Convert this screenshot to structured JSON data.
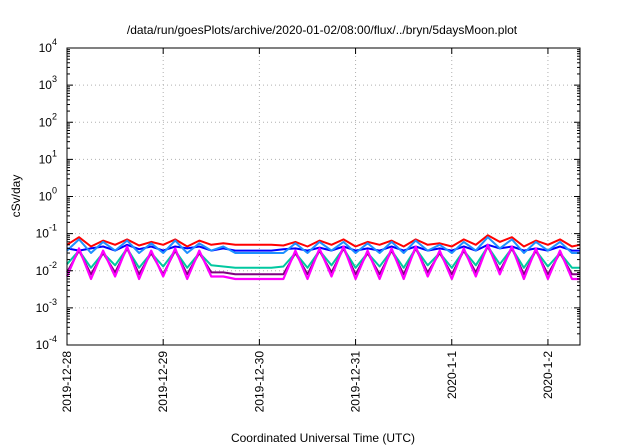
{
  "chart_data": {
    "type": "line",
    "title": "/data/run/goesPlots/archive/2020-01-02/08:00/flux/../bryn/5daysMoon.plot",
    "xlabel": "Coordinated Universal Time (UTC)",
    "ylabel": "cSv/day",
    "y_scale": "log",
    "ylim": [
      0.0001,
      10000
    ],
    "y_ticks": [
      {
        "value": 0.0001,
        "base": "10",
        "exp": "-4"
      },
      {
        "value": 0.001,
        "base": "10",
        "exp": "-3"
      },
      {
        "value": 0.01,
        "base": "10",
        "exp": "-2"
      },
      {
        "value": 0.1,
        "base": "10",
        "exp": "-1"
      },
      {
        "value": 1,
        "base": "10",
        "exp": "0"
      },
      {
        "value": 10,
        "base": "10",
        "exp": "1"
      },
      {
        "value": 100,
        "base": "10",
        "exp": "2"
      },
      {
        "value": 1000,
        "base": "10",
        "exp": "3"
      },
      {
        "value": 10000,
        "base": "10",
        "exp": "4"
      }
    ],
    "xlim": [
      "2019-12-28T00:00",
      "2020-01-02T08:00"
    ],
    "x_ticks": [
      {
        "date": "2019-12-28T00:00",
        "label": "2019-12-28"
      },
      {
        "date": "2019-12-29T00:00",
        "label": "2019-12-29"
      },
      {
        "date": "2019-12-30T00:00",
        "label": "2019-12-30"
      },
      {
        "date": "2019-12-31T00:00",
        "label": "2019-12-31"
      },
      {
        "date": "2020-01-01T00:00",
        "label": "2020-1-1"
      },
      {
        "date": "2020-01-02T00:00",
        "label": "2020-1-2"
      }
    ],
    "grid": true,
    "legend": "none",
    "x": [
      "2019-12-28T00:00",
      "2019-12-28T03:00",
      "2019-12-28T06:00",
      "2019-12-28T09:00",
      "2019-12-28T12:00",
      "2019-12-28T15:00",
      "2019-12-28T18:00",
      "2019-12-28T21:00",
      "2019-12-29T00:00",
      "2019-12-29T03:00",
      "2019-12-29T06:00",
      "2019-12-29T09:00",
      "2019-12-29T12:00",
      "2019-12-29T15:00",
      "2019-12-29T18:00",
      "2019-12-29T21:00",
      "2019-12-30T00:00",
      "2019-12-30T03:00",
      "2019-12-30T06:00",
      "2019-12-30T09:00",
      "2019-12-30T12:00",
      "2019-12-30T15:00",
      "2019-12-30T18:00",
      "2019-12-30T21:00",
      "2019-12-31T00:00",
      "2019-12-31T03:00",
      "2019-12-31T06:00",
      "2019-12-31T09:00",
      "2019-12-31T12:00",
      "2019-12-31T15:00",
      "2019-12-31T18:00",
      "2019-12-31T21:00",
      "2020-01-01T00:00",
      "2020-01-01T03:00",
      "2020-01-01T06:00",
      "2020-01-01T09:00",
      "2020-01-01T12:00",
      "2020-01-01T15:00",
      "2020-01-01T18:00",
      "2020-01-01T21:00",
      "2020-01-02T00:00",
      "2020-01-02T03:00",
      "2020-01-02T06:00",
      "2020-01-02T08:00"
    ],
    "series": [
      {
        "color": "#ff0000",
        "values": [
          0.05,
          0.08,
          0.045,
          0.065,
          0.05,
          0.07,
          0.048,
          0.06,
          0.05,
          0.07,
          0.045,
          0.065,
          0.05,
          0.055,
          0.05,
          0.05,
          0.05,
          0.05,
          0.048,
          0.06,
          0.045,
          0.065,
          0.05,
          0.07,
          0.045,
          0.06,
          0.05,
          0.065,
          0.045,
          0.07,
          0.05,
          0.055,
          0.045,
          0.07,
          0.05,
          0.09,
          0.06,
          0.08,
          0.045,
          0.065,
          0.05,
          0.07,
          0.045,
          0.05
        ]
      },
      {
        "color": "#0000ff",
        "values": [
          0.04,
          0.035,
          0.04,
          0.045,
          0.035,
          0.05,
          0.038,
          0.045,
          0.035,
          0.045,
          0.04,
          0.045,
          0.035,
          0.04,
          0.035,
          0.035,
          0.035,
          0.035,
          0.038,
          0.04,
          0.035,
          0.042,
          0.035,
          0.045,
          0.035,
          0.04,
          0.035,
          0.045,
          0.035,
          0.045,
          0.035,
          0.04,
          0.035,
          0.045,
          0.035,
          0.05,
          0.04,
          0.045,
          0.035,
          0.04,
          0.035,
          0.045,
          0.035,
          0.035
        ]
      },
      {
        "color": "#1e90ff",
        "values": [
          0.035,
          0.07,
          0.03,
          0.06,
          0.035,
          0.065,
          0.03,
          0.055,
          0.03,
          0.065,
          0.03,
          0.055,
          0.035,
          0.045,
          0.03,
          0.03,
          0.03,
          0.03,
          0.03,
          0.055,
          0.03,
          0.06,
          0.035,
          0.06,
          0.03,
          0.055,
          0.03,
          0.06,
          0.03,
          0.065,
          0.035,
          0.05,
          0.03,
          0.06,
          0.035,
          0.08,
          0.04,
          0.07,
          0.03,
          0.06,
          0.035,
          0.06,
          0.03,
          0.03
        ]
      },
      {
        "color": "#00c8a0",
        "values": [
          0.015,
          0.035,
          0.012,
          0.03,
          0.014,
          0.04,
          0.012,
          0.03,
          0.013,
          0.035,
          0.012,
          0.03,
          0.014,
          0.013,
          0.012,
          0.012,
          0.012,
          0.012,
          0.013,
          0.03,
          0.012,
          0.035,
          0.014,
          0.04,
          0.012,
          0.03,
          0.013,
          0.035,
          0.012,
          0.04,
          0.014,
          0.03,
          0.012,
          0.035,
          0.014,
          0.045,
          0.015,
          0.04,
          0.012,
          0.035,
          0.013,
          0.03,
          0.012,
          0.012
        ]
      },
      {
        "color": "#800080",
        "values": [
          0.009,
          0.035,
          0.008,
          0.03,
          0.009,
          0.04,
          0.008,
          0.03,
          0.008,
          0.035,
          0.008,
          0.03,
          0.009,
          0.009,
          0.008,
          0.008,
          0.008,
          0.008,
          0.008,
          0.03,
          0.008,
          0.035,
          0.009,
          0.04,
          0.008,
          0.03,
          0.008,
          0.035,
          0.008,
          0.04,
          0.009,
          0.03,
          0.008,
          0.035,
          0.009,
          0.045,
          0.01,
          0.04,
          0.008,
          0.035,
          0.008,
          0.03,
          0.008,
          0.008
        ]
      },
      {
        "color": "#ff00ff",
        "values": [
          0.007,
          0.04,
          0.006,
          0.035,
          0.007,
          0.045,
          0.006,
          0.035,
          0.007,
          0.04,
          0.006,
          0.035,
          0.007,
          0.007,
          0.006,
          0.006,
          0.006,
          0.006,
          0.006,
          0.035,
          0.006,
          0.04,
          0.007,
          0.045,
          0.006,
          0.035,
          0.006,
          0.04,
          0.006,
          0.045,
          0.007,
          0.035,
          0.006,
          0.04,
          0.007,
          0.05,
          0.008,
          0.045,
          0.006,
          0.04,
          0.006,
          0.035,
          0.006,
          0.006
        ]
      }
    ]
  }
}
